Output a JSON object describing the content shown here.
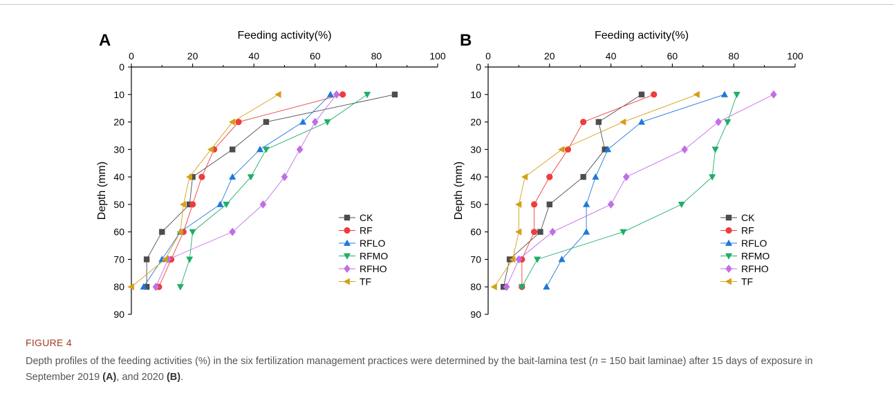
{
  "figure": {
    "label": "FIGURE 4",
    "caption": {
      "pre": "Depth profiles of the feeding activities (%) in the six fertilization management practices were determined by the bait-lamina test (",
      "n_var": "n",
      "mid": " = 150 bait laminae) after 15 days of exposure in September 2019 ",
      "refA": "(A)",
      "mid2": ", and 2020 ",
      "refB": "(B)",
      "post": "."
    }
  },
  "colors": {
    "CK": "#4d4d4d",
    "RF": "#f03c3c",
    "RFLO": "#1f78d8",
    "RFMO": "#1fae6a",
    "RFHO": "#c26ee6",
    "TF": "#d4a016"
  },
  "chart_data": [
    {
      "panel": "A",
      "type": "line",
      "xlabel": "Feeding activity(%)",
      "ylabel": "Depth (mm)",
      "xlim": [
        0,
        100
      ],
      "ylim": [
        0,
        90
      ],
      "y_reversed": true,
      "x_axis_position": "top",
      "xticks": [
        0,
        20,
        40,
        60,
        80,
        100
      ],
      "yticks": [
        0,
        10,
        20,
        30,
        40,
        50,
        60,
        70,
        80,
        90
      ],
      "legend_position": "bottom-right",
      "y": [
        10,
        20,
        30,
        40,
        50,
        60,
        70,
        80
      ],
      "series": [
        {
          "name": "CK",
          "marker": "square",
          "values": [
            86,
            44,
            33,
            20,
            19,
            10,
            5,
            5
          ]
        },
        {
          "name": "RF",
          "marker": "circle",
          "values": [
            69,
            35,
            27,
            23,
            20,
            17,
            13,
            9
          ]
        },
        {
          "name": "RFLO",
          "marker": "triangle-up",
          "values": [
            65,
            56,
            42,
            33,
            29,
            16,
            10,
            4
          ]
        },
        {
          "name": "RFMO",
          "marker": "triangle-down",
          "values": [
            77,
            64,
            44,
            39,
            31,
            20,
            19,
            16
          ]
        },
        {
          "name": "RFHO",
          "marker": "diamond",
          "values": [
            67,
            60,
            55,
            50,
            43,
            33,
            12,
            8
          ]
        },
        {
          "name": "TF",
          "marker": "triangle-left",
          "values": [
            48,
            33,
            26,
            19,
            17,
            16,
            11,
            0
          ]
        }
      ]
    },
    {
      "panel": "B",
      "type": "line",
      "xlabel": "Feeding activity(%)",
      "ylabel": "Depth (mm)",
      "xlim": [
        0,
        100
      ],
      "ylim": [
        0,
        90
      ],
      "y_reversed": true,
      "x_axis_position": "top",
      "xticks": [
        0,
        20,
        40,
        60,
        80,
        100
      ],
      "yticks": [
        0,
        10,
        20,
        30,
        40,
        50,
        60,
        70,
        80,
        90
      ],
      "legend_position": "bottom-right",
      "y": [
        10,
        20,
        30,
        40,
        50,
        60,
        70,
        80
      ],
      "series": [
        {
          "name": "CK",
          "marker": "square",
          "values": [
            50,
            36,
            38,
            31,
            20,
            17,
            7,
            5
          ]
        },
        {
          "name": "RF",
          "marker": "circle",
          "values": [
            54,
            31,
            26,
            20,
            15,
            15,
            11,
            11
          ]
        },
        {
          "name": "RFLO",
          "marker": "triangle-up",
          "values": [
            77,
            50,
            39,
            35,
            32,
            32,
            24,
            19
          ]
        },
        {
          "name": "RFMO",
          "marker": "triangle-down",
          "values": [
            81,
            78,
            74,
            73,
            63,
            44,
            16,
            11
          ]
        },
        {
          "name": "RFHO",
          "marker": "diamond",
          "values": [
            93,
            75,
            64,
            45,
            40,
            21,
            10,
            6
          ]
        },
        {
          "name": "TF",
          "marker": "triangle-left",
          "values": [
            68,
            44,
            24,
            12,
            10,
            10,
            8,
            2
          ]
        }
      ]
    }
  ]
}
